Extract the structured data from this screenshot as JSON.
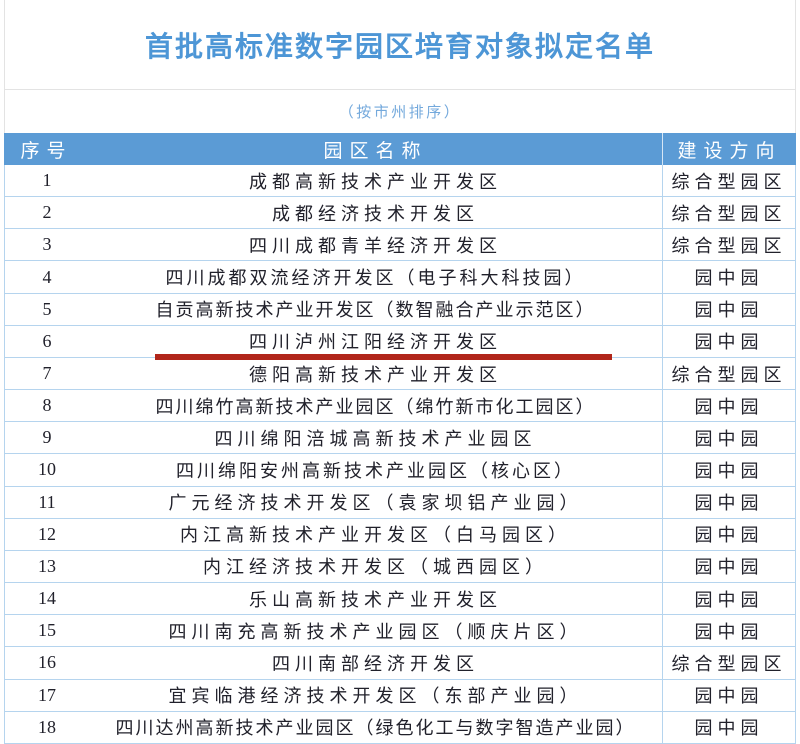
{
  "title": "首批高标准数字园区培育对象拟定名单",
  "subtitle": "（按市州排序）",
  "table": {
    "headers": {
      "index": "序号",
      "name": "园区名称",
      "direction": "建设方向"
    },
    "rows": [
      {
        "no": "1",
        "name": "成都高新技术产业开发区",
        "direction": "综合型园区",
        "highlighted": false
      },
      {
        "no": "2",
        "name": "成都经济技术开发区",
        "direction": "综合型园区",
        "highlighted": false
      },
      {
        "no": "3",
        "name": "四川成都青羊经济开发区",
        "direction": "综合型园区",
        "highlighted": false
      },
      {
        "no": "4",
        "name": "四川成都双流经济开发区（电子科大科技园）",
        "direction": "园中园",
        "highlighted": false
      },
      {
        "no": "5",
        "name": "自贡高新技术产业开发区（数智融合产业示范区）",
        "direction": "园中园",
        "highlighted": false
      },
      {
        "no": "6",
        "name": "四川泸州江阳经济开发区",
        "direction": "园中园",
        "highlighted": true
      },
      {
        "no": "7",
        "name": "德阳高新技术产业开发区",
        "direction": "综合型园区",
        "highlighted": false
      },
      {
        "no": "8",
        "name": "四川绵竹高新技术产业园区（绵竹新市化工园区）",
        "direction": "园中园",
        "highlighted": false
      },
      {
        "no": "9",
        "name": "四川绵阳涪城高新技术产业园区",
        "direction": "园中园",
        "highlighted": false
      },
      {
        "no": "10",
        "name": "四川绵阳安州高新技术产业园区（核心区）",
        "direction": "园中园",
        "highlighted": false
      },
      {
        "no": "11",
        "name": "广元经济技术开发区（袁家坝铝产业园）",
        "direction": "园中园",
        "highlighted": false
      },
      {
        "no": "12",
        "name": "内江高新技术产业开发区（白马园区）",
        "direction": "园中园",
        "highlighted": false
      },
      {
        "no": "13",
        "name": "内江经济技术开发区（城西园区）",
        "direction": "园中园",
        "highlighted": false
      },
      {
        "no": "14",
        "name": "乐山高新技术产业开发区",
        "direction": "园中园",
        "highlighted": false
      },
      {
        "no": "15",
        "name": "四川南充高新技术产业园区（顺庆片区）",
        "direction": "园中园",
        "highlighted": false
      },
      {
        "no": "16",
        "name": "四川南部经济开发区",
        "direction": "综合型园区",
        "highlighted": false
      },
      {
        "no": "17",
        "name": "宜宾临港经济技术开发区（东部产业园）",
        "direction": "园中园",
        "highlighted": false
      },
      {
        "no": "18",
        "name": "四川达州高新技术产业园区（绿色化工与数字智造产业园）",
        "direction": "园中园",
        "highlighted": false
      }
    ]
  },
  "colors": {
    "header_bg": "#5B9BD5",
    "line": "#B5D4EE",
    "text": "#21212B",
    "title_color": "#4D96D6",
    "subtitle_color": "#74A9DC",
    "highlight": "#B1261A",
    "frame_border": "#E3E3E3"
  }
}
